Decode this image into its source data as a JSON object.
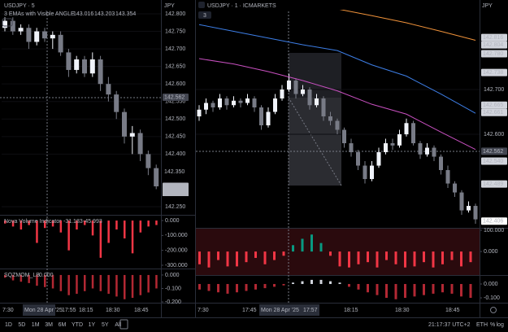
{
  "left": {
    "symbol": "USDJPY · 5",
    "indicator": "3 EMAs with Visible ANGLE",
    "ema_readouts": [
      {
        "value": 143.016,
        "color": "#c850c0"
      },
      {
        "value": 143.203,
        "color": "#3d7ee6"
      },
      {
        "value": 143.354,
        "color": "#f0923a"
      }
    ],
    "currency": "JPY",
    "ylim": [
      142.25,
      142.8
    ],
    "yticks": [
      {
        "value": 142.8,
        "label": "142.800"
      },
      {
        "value": 142.75,
        "label": "142.750"
      },
      {
        "value": 142.7,
        "label": "142.700"
      },
      {
        "value": 142.65,
        "label": "142.650"
      },
      {
        "value": 142.6,
        "label": "142.600"
      },
      {
        "value": 142.55,
        "label": "142.550"
      },
      {
        "value": 142.5,
        "label": "142.500"
      },
      {
        "value": 142.45,
        "label": "142.450"
      },
      {
        "value": 142.4,
        "label": "142.400"
      },
      {
        "value": 142.25,
        "label": "142.250"
      }
    ],
    "candles": [
      [
        142.76,
        142.79,
        142.75,
        142.78
      ],
      [
        142.78,
        142.79,
        142.74,
        142.75
      ],
      [
        142.75,
        142.77,
        142.74,
        142.76
      ],
      [
        142.76,
        142.77,
        142.7,
        142.72
      ],
      [
        142.72,
        142.76,
        142.71,
        142.75
      ],
      [
        142.75,
        142.76,
        142.72,
        142.73
      ],
      [
        142.73,
        142.75,
        142.7,
        142.74
      ],
      [
        142.74,
        142.75,
        142.68,
        142.69
      ],
      [
        142.69,
        142.7,
        142.62,
        142.64
      ],
      [
        142.64,
        142.68,
        142.63,
        142.67
      ],
      [
        142.67,
        142.68,
        142.62,
        142.63
      ],
      [
        142.63,
        142.69,
        142.62,
        142.67
      ],
      [
        142.67,
        142.68,
        142.58,
        142.6
      ],
      [
        142.6,
        142.62,
        142.55,
        142.57
      ],
      [
        142.57,
        142.58,
        142.5,
        142.52
      ],
      [
        142.52,
        142.53,
        142.43,
        142.45
      ],
      [
        142.45,
        142.48,
        142.4,
        142.46
      ],
      [
        142.46,
        142.47,
        142.38,
        142.4
      ],
      [
        142.4,
        142.41,
        142.34,
        142.36
      ],
      [
        142.36,
        142.37,
        142.3,
        142.308
      ]
    ],
    "price_tags": [
      {
        "value": 142.562,
        "label": "142.562",
        "bg": "#434651",
        "fg": "#ffffff"
      },
      {
        "value": 142.35,
        "label": "142.350",
        "bg": "#000000",
        "fg": "#b2b5be"
      },
      {
        "value": 142.308,
        "label": "142.308",
        "bg": "#b2b5be",
        "fg": "#131722"
      }
    ],
    "countdown": "02:23",
    "volume": {
      "name": "Nova Volume Indicator",
      "readouts": [
        {
          "value": -31.183,
          "color": "#f23645"
        },
        {
          "value": -45.993,
          "color": "#3d7ee6"
        }
      ],
      "ylim": [
        -322,
        33
      ],
      "yticks": [
        {
          "value": 0,
          "label": "0.000"
        },
        {
          "value": -100,
          "label": "-100.000"
        },
        {
          "value": -200,
          "label": "-200.000"
        },
        {
          "value": -300,
          "label": "-300.000"
        }
      ],
      "values": [
        -20,
        -40,
        -60,
        -30,
        -150,
        -50,
        -40,
        -80,
        -200,
        -60,
        -30,
        -100,
        -250,
        -150,
        -60,
        -120,
        -220,
        -80,
        -40,
        -30
      ]
    },
    "squeeze": {
      "name": "SQZMOM_LB",
      "readout": {
        "value": 0,
        "label": "0.000"
      },
      "ylim": [
        -0.206,
        0.036
      ],
      "yticks": [
        {
          "value": 0,
          "label": "0.000"
        },
        {
          "value": -0.1,
          "label": "-0.100"
        },
        {
          "value": -0.2,
          "label": "-0.200"
        }
      ],
      "values": [
        -0.02,
        -0.04,
        -0.05,
        -0.06,
        -0.08,
        -0.09,
        -0.1,
        -0.12,
        -0.15,
        -0.14,
        -0.12,
        -0.1,
        -0.12,
        -0.14,
        -0.16,
        -0.18,
        -0.17,
        -0.15,
        -0.13,
        -0.1
      ]
    },
    "time_labels": [
      "7:30",
      "18:15",
      "18:30",
      "18:45"
    ],
    "crosshair_date": "Mon 28 Apr '25",
    "crosshair_time": "17:55"
  },
  "right": {
    "symbol": "USDJPY · 1 · ICMARKETS",
    "badge": "3",
    "currency": "JPY",
    "ylim": [
      142.391,
      142.8745
    ],
    "yticks": [
      {
        "value": 142.7,
        "label": "142.700"
      },
      {
        "value": 142.6,
        "label": "142.600"
      }
    ],
    "candles": [
      [
        142.64,
        142.665,
        142.63,
        142.655
      ],
      [
        142.655,
        142.68,
        142.645,
        142.67
      ],
      [
        142.67,
        142.675,
        142.65,
        142.66
      ],
      [
        142.66,
        142.69,
        142.655,
        142.68
      ],
      [
        142.68,
        142.685,
        142.655,
        142.665
      ],
      [
        142.665,
        142.685,
        142.66,
        142.675
      ],
      [
        142.675,
        142.68,
        142.66,
        142.67
      ],
      [
        142.67,
        142.69,
        142.665,
        142.68
      ],
      [
        142.68,
        142.685,
        142.65,
        142.66
      ],
      [
        142.66,
        142.665,
        142.61,
        142.62
      ],
      [
        142.62,
        142.66,
        142.615,
        142.65
      ],
      [
        142.65,
        142.69,
        142.645,
        142.68
      ],
      [
        142.68,
        142.71,
        142.675,
        142.7
      ],
      [
        142.7,
        142.735,
        142.695,
        142.72
      ],
      [
        142.72,
        142.725,
        142.68,
        142.69
      ],
      [
        142.69,
        142.71,
        142.685,
        142.7
      ],
      [
        142.7,
        142.705,
        142.655,
        142.665
      ],
      [
        142.665,
        142.69,
        142.66,
        142.68
      ],
      [
        142.68,
        142.685,
        142.63,
        142.64
      ],
      [
        142.64,
        142.65,
        142.62,
        142.63
      ],
      [
        142.63,
        142.635,
        142.6,
        142.61
      ],
      [
        142.61,
        142.615,
        142.57,
        142.58
      ],
      [
        142.58,
        142.59,
        142.55,
        142.56
      ],
      [
        142.56,
        142.565,
        142.52,
        142.53
      ],
      [
        142.53,
        142.54,
        142.49,
        142.5
      ],
      [
        142.5,
        142.54,
        142.495,
        142.53
      ],
      [
        142.53,
        142.57,
        142.525,
        142.56
      ],
      [
        142.56,
        142.59,
        142.555,
        142.58
      ],
      [
        142.58,
        142.59,
        142.565,
        142.575
      ],
      [
        142.575,
        142.61,
        142.57,
        142.6
      ],
      [
        142.6,
        142.635,
        142.595,
        142.625
      ],
      [
        142.625,
        142.63,
        142.575,
        142.58
      ],
      [
        142.58,
        142.585,
        142.545,
        142.555
      ],
      [
        142.555,
        142.58,
        142.55,
        142.57
      ],
      [
        142.57,
        142.575,
        142.54,
        142.55
      ],
      [
        142.55,
        142.555,
        142.51,
        142.52
      ],
      [
        142.52,
        142.53,
        142.48,
        142.49
      ],
      [
        142.49,
        142.495,
        142.46,
        142.47
      ],
      [
        142.47,
        142.475,
        142.42,
        142.43
      ],
      [
        142.43,
        142.45,
        142.425,
        142.44
      ],
      [
        142.44,
        142.445,
        142.4,
        142.41
      ]
    ],
    "emas": [
      {
        "color": "#f0923a",
        "values": [
          142.936,
          142.92,
          142.91,
          142.89,
          142.88,
          142.865,
          142.849,
          142.83,
          142.81
        ]
      },
      {
        "color": "#3d7ee6",
        "values": [
          142.845,
          142.83,
          142.815,
          142.8,
          142.787,
          142.755,
          142.73,
          142.69,
          142.647
        ]
      },
      {
        "color": "#c850c0",
        "values": [
          142.769,
          142.757,
          142.74,
          142.72,
          142.697,
          142.667,
          142.645,
          142.605,
          142.566
        ]
      }
    ],
    "price_tags": [
      {
        "value": 142.816,
        "label": "142.816",
        "bg": "#d1d4dc",
        "fg": "#131722"
      },
      {
        "value": 142.804,
        "label": "142.804",
        "bg": "#d1d4dc",
        "fg": "#131722"
      },
      {
        "value": 142.78,
        "label": "142.780",
        "bg": "#d1d4dc",
        "fg": "#131722"
      },
      {
        "value": 142.738,
        "label": "142.738",
        "bg": "#d1d4dc",
        "fg": "#131722"
      },
      {
        "value": 142.665,
        "label": "142.665",
        "bg": "#d1d4dc",
        "fg": "#131722"
      },
      {
        "value": 142.661,
        "label": "142.661",
        "bg": "#d1d4dc",
        "fg": "#131722"
      },
      {
        "value": 142.562,
        "label": "142.562",
        "bg": "#434651",
        "fg": "#ffffff"
      },
      {
        "value": 142.54,
        "label": "142.540",
        "bg": "#d1d4dc",
        "fg": "#131722"
      },
      {
        "value": 142.489,
        "label": "142.489",
        "bg": "#d1d4dc",
        "fg": "#131722"
      },
      {
        "value": 142.406,
        "label": "142.406",
        "bg": "#ffffff",
        "fg": "#131722"
      }
    ],
    "volume": {
      "ylim": [
        -80,
        100
      ],
      "yticks": [
        {
          "value": 100,
          "label": "100.000"
        },
        {
          "value": 0,
          "label": "0.000"
        }
      ],
      "values": [
        -60,
        -75,
        -40,
        -70,
        -70,
        -50,
        -30,
        -60,
        -40,
        -20,
        30,
        60,
        80,
        40,
        -20,
        -70,
        -75,
        -60,
        -50,
        -75,
        -40,
        -60,
        -75,
        -70,
        -50,
        -75,
        -60,
        -40,
        -70,
        -50
      ]
    },
    "squeeze": {
      "ylim": [
        -0.135,
        0.053
      ],
      "yticks": [
        {
          "value": 0,
          "label": "0.000"
        },
        {
          "value": -0.1,
          "label": "-0.100"
        }
      ],
      "values": [
        -0.04,
        -0.05,
        -0.06,
        -0.07,
        -0.06,
        -0.05,
        -0.04,
        -0.03,
        -0.02,
        -0.01,
        0.01,
        0.02,
        0.03,
        0.03,
        0.02,
        0.01,
        -0.02,
        -0.04,
        -0.06,
        -0.08,
        -0.1,
        -0.11,
        -0.1,
        -0.09,
        -0.08,
        -0.07,
        -0.06,
        -0.07,
        -0.09,
        -0.1
      ]
    },
    "time_labels": [
      "7:30",
      "17:45",
      "18:15",
      "18:30",
      "18:45"
    ],
    "crosshair_date": "Mon 28 Apr '25",
    "crosshair_time": "17:57"
  },
  "toolbar": {
    "ranges": [
      "1D",
      "5D",
      "1M",
      "3M",
      "6M",
      "YTD",
      "1Y",
      "5Y",
      "All"
    ],
    "clock": "21:17:37 UTC+2",
    "session": "ETH",
    "options": [
      "%",
      "log",
      "auto"
    ]
  }
}
